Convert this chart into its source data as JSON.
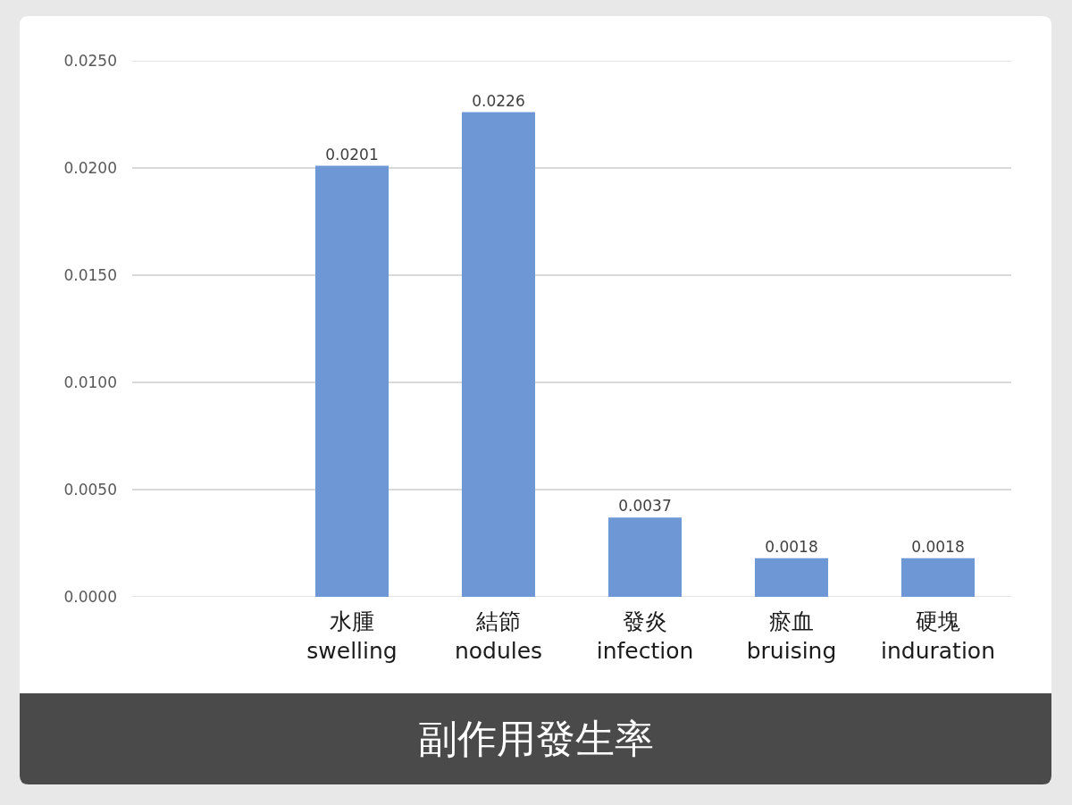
{
  "chart_data": {
    "type": "bar",
    "title": "副作用發生率",
    "categories": [
      null,
      "水腫\nswelling",
      "結節\nnodules",
      "發炎\ninfection",
      "瘀血\nbruising",
      "硬塊\ninduration"
    ],
    "values": [
      null,
      0.0201,
      0.0226,
      0.0037,
      0.0018,
      0.0018
    ],
    "color": "#6e98d5",
    "ylim": [
      0,
      0.025
    ],
    "yticks": [
      {
        "value": 0,
        "label": "0.0000"
      },
      {
        "value": 0.005,
        "label": "0.0050"
      },
      {
        "value": 0.01,
        "label": "0.0100"
      },
      {
        "value": 0.015,
        "label": "0.0150"
      },
      {
        "value": 0.02,
        "label": "0.0200"
      },
      {
        "value": 0.025,
        "label": "0.0250"
      }
    ],
    "grid": "y",
    "data_labels": true
  }
}
